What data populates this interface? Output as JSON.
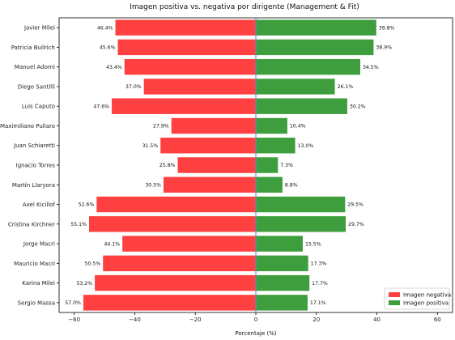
{
  "chart_data": {
    "type": "bar",
    "orientation": "horizontal-diverging",
    "title": "Imagen positiva vs. negativa por dirigente (Management & Fit)",
    "xlabel": "Porcentaje (%)",
    "ylabel": "",
    "xlim": [
      -65,
      65
    ],
    "xticks": [
      -60,
      -40,
      -20,
      0,
      20,
      40,
      60
    ],
    "xtick_labels": [
      "−60",
      "−40",
      "−20",
      "0",
      "20",
      "40",
      "60"
    ],
    "grid": false,
    "legend_position": "lower-right",
    "categories": [
      "Javier Milei",
      "Patricia Bullrich",
      "Manuel Adorni",
      "Diego Santilli",
      "Luis Caputo",
      "Maximiliano Pullaro",
      "Juan Schiaretti",
      "Ignacio Torres",
      "Martín Llaryora",
      "Axel Kicillof",
      "Cristina Kirchner",
      "Jorge Macri",
      "Mauricio Macri",
      "Karina Milei",
      "Sergio Massa"
    ],
    "series": [
      {
        "name": "Imagen negativa",
        "color": "#ff4040",
        "values": [
          -46.4,
          -45.6,
          -43.4,
          -37.0,
          -47.6,
          -27.9,
          -31.5,
          -25.8,
          -30.5,
          -52.6,
          -55.1,
          -44.1,
          -50.5,
          -53.2,
          -57.0
        ],
        "labels": [
          "46.4%",
          "45.6%",
          "43.4%",
          "37.0%",
          "47.6%",
          "27.9%",
          "31.5%",
          "25.8%",
          "30.5%",
          "52.6%",
          "55.1%",
          "44.1%",
          "50.5%",
          "53.2%",
          "57.0%"
        ]
      },
      {
        "name": "Imagen positiva",
        "color": "#3e9e3e",
        "values": [
          39.8,
          38.9,
          34.5,
          26.1,
          30.2,
          10.4,
          13.0,
          7.3,
          8.8,
          29.5,
          29.7,
          15.5,
          17.3,
          17.7,
          17.1
        ],
        "labels": [
          "39.8%",
          "38.9%",
          "34.5%",
          "26.1%",
          "30.2%",
          "10.4%",
          "13.0%",
          "7.3%",
          "8.8%",
          "29.5%",
          "29.7%",
          "15.5%",
          "17.3%",
          "17.7%",
          "17.1%"
        ]
      }
    ],
    "zero_line_color": "#4c8ed0"
  }
}
